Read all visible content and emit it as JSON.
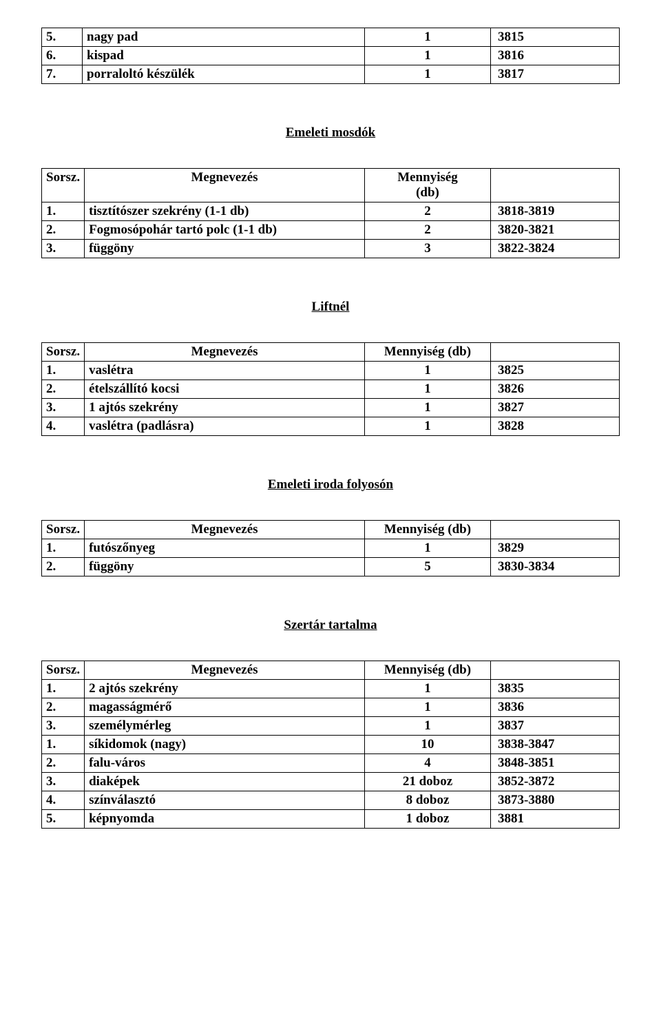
{
  "labels": {
    "sorsz": "Sorsz.",
    "megnevezes": "Megnevezés",
    "mennyiseg_db": "Mennyiség (db)",
    "mennyiseg": "Mennyiség",
    "db": "(db)"
  },
  "tables": {
    "top_rows": [
      {
        "n": "5.",
        "name": "nagy pad",
        "qty": "1",
        "code": "3815"
      },
      {
        "n": "6.",
        "name": "kispad",
        "qty": "1",
        "code": "3816"
      },
      {
        "n": "7.",
        "name": "porraloltó készülék",
        "qty": "1",
        "code": "3817"
      }
    ],
    "emeleti_mosdok": {
      "title": "Emeleti mosdók",
      "rows": [
        {
          "n": "1.",
          "name": "tisztítószer szekrény (1-1 db)",
          "qty": "2",
          "code": "3818-3819"
        },
        {
          "n": "2.",
          "name": "Fogmosópohár tartó polc (1-1 db)",
          "qty": "2",
          "code": "3820-3821"
        },
        {
          "n": "3.",
          "name": "függöny",
          "qty": "3",
          "code": "3822-3824"
        }
      ]
    },
    "liftnel": {
      "title": "Liftnél",
      "rows": [
        {
          "n": "1.",
          "name": "vaslétra",
          "qty": "1",
          "code": "3825"
        },
        {
          "n": "2.",
          "name": "ételszállító kocsi",
          "qty": "1",
          "code": "3826"
        },
        {
          "n": "3.",
          "name": "1 ajtós szekrény",
          "qty": "1",
          "code": "3827"
        },
        {
          "n": "4.",
          "name": "vaslétra (padlásra)",
          "qty": "1",
          "code": "3828"
        }
      ]
    },
    "emeleti_iroda": {
      "title": "Emeleti iroda folyosón",
      "rows": [
        {
          "n": "1.",
          "name": "futószőnyeg",
          "qty": "1",
          "code": "3829"
        },
        {
          "n": "2.",
          "name": "függöny",
          "qty": "5",
          "code": "3830-3834"
        }
      ]
    },
    "szertar": {
      "title": "Szertár tartalma",
      "rows": [
        {
          "n": "1.",
          "name": "2 ajtós szekrény",
          "qty": "1",
          "code": "3835"
        },
        {
          "n": "2.",
          "name": "magasságmérő",
          "qty": "1",
          "code": "3836"
        },
        {
          "n": "3.",
          "name": "személymérleg",
          "qty": "1",
          "code": "3837"
        },
        {
          "n": "1.",
          "name": "síkidomok (nagy)",
          "qty": "10",
          "code": "3838-3847"
        },
        {
          "n": "2.",
          "name": "falu-város",
          "qty": "4",
          "code": "3848-3851"
        },
        {
          "n": "3.",
          "name": "diaképek",
          "qty": "21 doboz",
          "code": "3852-3872"
        },
        {
          "n": "4.",
          "name": "színválasztó",
          "qty": "8 doboz",
          "code": "3873-3880"
        },
        {
          "n": "5.",
          "name": "képnyomda",
          "qty": "1 doboz",
          "code": "3881"
        }
      ]
    }
  }
}
